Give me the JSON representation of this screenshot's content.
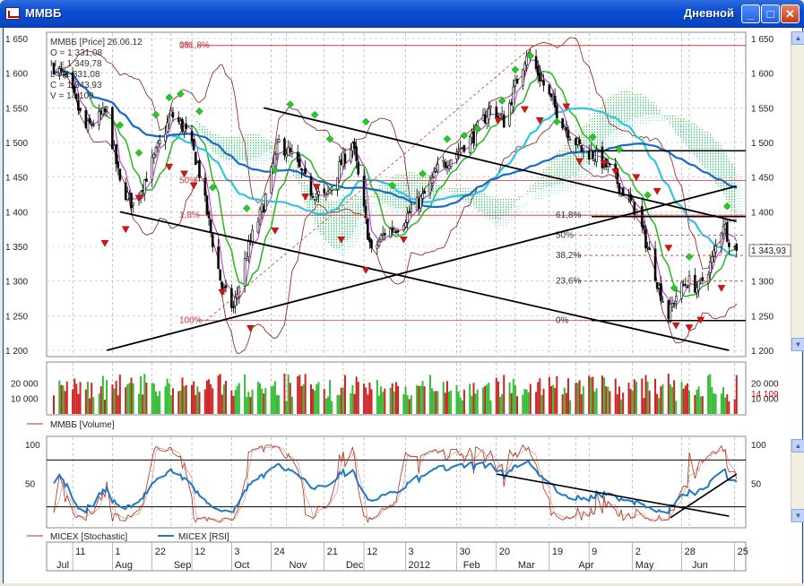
{
  "window": {
    "title": "ММВБ",
    "timeframe": "Дневной"
  },
  "ohlc": {
    "header": "ММВБ [Price] 26.06.12",
    "o": "O = 1 331,08",
    "h": "H = 1 349,78",
    "l": "L = 1 331,08",
    "c": "C = 1 343,93",
    "v": "V = 14 109"
  },
  "chart_data": [
    {
      "type": "candlestick",
      "ylim": [
        1200,
        1650
      ],
      "yticks": [
        "1 650",
        "1 600",
        "1 550",
        "1 500",
        "1 450",
        "1 400",
        "1 350",
        "1 300",
        "1 250",
        "1 200"
      ],
      "last_price_label": "1 343,93",
      "close_path": [
        [
          "2011-07-01",
          1610
        ],
        [
          "2011-07-08",
          1590
        ],
        [
          "2011-07-18",
          1520
        ],
        [
          "2011-07-29",
          1545
        ],
        [
          "2011-08-05",
          1440
        ],
        [
          "2011-08-12",
          1410
        ],
        [
          "2011-08-22",
          1470
        ],
        [
          "2011-09-01",
          1540
        ],
        [
          "2011-09-08",
          1520
        ],
        [
          "2011-09-15",
          1470
        ],
        [
          "2011-09-22",
          1370
        ],
        [
          "2011-09-28",
          1290
        ],
        [
          "2011-10-04",
          1260
        ],
        [
          "2011-10-12",
          1350
        ],
        [
          "2011-10-20",
          1410
        ],
        [
          "2011-10-28",
          1500
        ],
        [
          "2011-11-04",
          1480
        ],
        [
          "2011-11-14",
          1430
        ],
        [
          "2011-11-22",
          1420
        ],
        [
          "2011-11-30",
          1470
        ],
        [
          "2011-12-06",
          1500
        ],
        [
          "2011-12-12",
          1400
        ],
        [
          "2011-12-16",
          1340
        ],
        [
          "2011-12-23",
          1370
        ],
        [
          "2011-12-30",
          1380
        ],
        [
          "2012-01-12",
          1420
        ],
        [
          "2012-01-20",
          1460
        ],
        [
          "2012-01-31",
          1490
        ],
        [
          "2012-02-08",
          1510
        ],
        [
          "2012-02-17",
          1550
        ],
        [
          "2012-02-24",
          1530
        ],
        [
          "2012-03-02",
          1590
        ],
        [
          "2012-03-07",
          1630
        ],
        [
          "2012-03-13",
          1600
        ],
        [
          "2012-03-20",
          1560
        ],
        [
          "2012-03-28",
          1520
        ],
        [
          "2012-04-05",
          1490
        ],
        [
          "2012-04-13",
          1480
        ],
        [
          "2012-04-20",
          1460
        ],
        [
          "2012-04-27",
          1430
        ],
        [
          "2012-05-04",
          1400
        ],
        [
          "2012-05-11",
          1340
        ],
        [
          "2012-05-16",
          1290
        ],
        [
          "2012-05-21",
          1250
        ],
        [
          "2012-05-25",
          1280
        ],
        [
          "2012-05-31",
          1300
        ],
        [
          "2012-06-06",
          1290
        ],
        [
          "2012-06-13",
          1330
        ],
        [
          "2012-06-19",
          1385
        ],
        [
          "2012-06-22",
          1360
        ],
        [
          "2012-06-26",
          1343.93
        ]
      ],
      "fib_levels": [
        {
          "label": "0%",
          "value": 1640
        },
        {
          "label": "181,8%",
          "value": 1640
        },
        {
          "label": "50%",
          "value": 1445
        },
        {
          "label": "1,8%",
          "value": 1395
        },
        {
          "label": "100%",
          "value": 1243
        },
        {
          "label": "61,8%",
          "value": 1395
        },
        {
          "label": "50%",
          "value": 1366
        },
        {
          "label": "38,2%",
          "value": 1337
        },
        {
          "label": "23,6%",
          "value": 1300
        },
        {
          "label": "0%",
          "value": 1243
        }
      ],
      "horizontal_levels": [
        1488,
        1393,
        1243
      ],
      "trendlines": [
        [
          [
            "2011-07-29",
            1200
          ],
          [
            "2012-06-26",
            1437
          ]
        ],
        [
          [
            "2011-08-05",
            1400
          ],
          [
            "2012-06-22",
            1200
          ]
        ],
        [
          [
            "2011-10-20",
            1550
          ],
          [
            "2012-06-26",
            1386
          ]
        ]
      ],
      "signals_up": [
        [
          "2011-08-05",
          1525
        ],
        [
          "2011-08-15",
          1485
        ],
        [
          "2011-08-24",
          1540
        ],
        [
          "2011-08-31",
          1565
        ],
        [
          "2011-09-06",
          1570
        ],
        [
          "2011-09-16",
          1545
        ],
        [
          "2011-09-23",
          1435
        ],
        [
          "2011-10-11",
          1405
        ],
        [
          "2011-10-26",
          1460
        ],
        [
          "2011-11-03",
          1555
        ],
        [
          "2011-11-16",
          1540
        ],
        [
          "2011-11-24",
          1505
        ],
        [
          "2011-12-13",
          1530
        ],
        [
          "2011-12-27",
          1438
        ],
        [
          "2012-01-12",
          1455
        ],
        [
          "2012-01-25",
          1505
        ],
        [
          "2012-02-03",
          1510
        ],
        [
          "2012-02-10",
          1520
        ],
        [
          "2012-02-23",
          1560
        ],
        [
          "2012-03-01",
          1605
        ],
        [
          "2012-03-09",
          1625
        ],
        [
          "2012-03-23",
          1530
        ],
        [
          "2012-04-11",
          1508
        ],
        [
          "2012-04-25",
          1490
        ],
        [
          "2012-05-10",
          1424
        ],
        [
          "2012-05-24",
          1290
        ],
        [
          "2012-06-01",
          1335
        ],
        [
          "2012-06-21",
          1408
        ]
      ],
      "signals_down": [
        [
          "2011-07-28",
          1355
        ],
        [
          "2011-08-08",
          1375
        ],
        [
          "2011-08-15",
          1420
        ],
        [
          "2011-08-31",
          1465
        ],
        [
          "2011-09-08",
          1455
        ],
        [
          "2011-09-13",
          1438
        ],
        [
          "2011-09-28",
          1284
        ],
        [
          "2011-10-13",
          1232
        ],
        [
          "2011-10-26",
          1373
        ],
        [
          "2011-11-11",
          1422
        ],
        [
          "2011-11-17",
          1436
        ],
        [
          "2011-11-30",
          1360
        ],
        [
          "2011-12-13",
          1316
        ],
        [
          "2012-01-02",
          1360
        ],
        [
          "2012-02-21",
          1532
        ],
        [
          "2012-03-06",
          1548
        ],
        [
          "2012-03-14",
          1532
        ],
        [
          "2012-03-28",
          1552
        ],
        [
          "2012-04-04",
          1473
        ],
        [
          "2012-04-17",
          1470
        ],
        [
          "2012-04-23",
          1458
        ],
        [
          "2012-05-04",
          1450
        ],
        [
          "2012-05-15",
          1430
        ],
        [
          "2012-05-21",
          1348
        ],
        [
          "2012-05-25",
          1236
        ],
        [
          "2012-06-01",
          1233
        ],
        [
          "2012-06-07",
          1244
        ],
        [
          "2012-06-18",
          1290
        ]
      ]
    },
    {
      "type": "bar",
      "series_name": "ММВБ [Volume]",
      "ylim": [
        0,
        30000
      ],
      "yticks": [
        "20 000",
        "10 000"
      ],
      "last_value_label": "14 109",
      "values_pattern_description_omitted": true
    },
    {
      "type": "line",
      "series": [
        {
          "name": "MICEX [Stochastic]",
          "color": "#b03018"
        },
        {
          "name": "MICEX [RSI]",
          "color": "#1f78c8"
        }
      ],
      "ylim": [
        0,
        100
      ],
      "yticks": [
        "100",
        "50"
      ],
      "levels": [
        80,
        20
      ]
    }
  ],
  "x_axis": {
    "day_ticks": [
      "11",
      "1",
      "22",
      "12",
      "3",
      "24",
      "21",
      "12",
      "3",
      "30",
      "20",
      "19",
      "9",
      "2",
      "28",
      "25"
    ],
    "month_ticks": [
      "Jul",
      "Aug",
      "Sep",
      "Oct",
      "Nov",
      "Dec",
      "2012",
      "Feb",
      "Mar",
      "Apr",
      "May",
      "Jun"
    ]
  },
  "colors": {
    "bull": "#22aa22",
    "bear": "#cc1111",
    "ma_blue": "#1a6ac8",
    "ma_cyan": "#30c4e0",
    "ma_green": "#22b822",
    "ma_magenta": "#b030c8",
    "bollinger": "#8b1a1a"
  }
}
